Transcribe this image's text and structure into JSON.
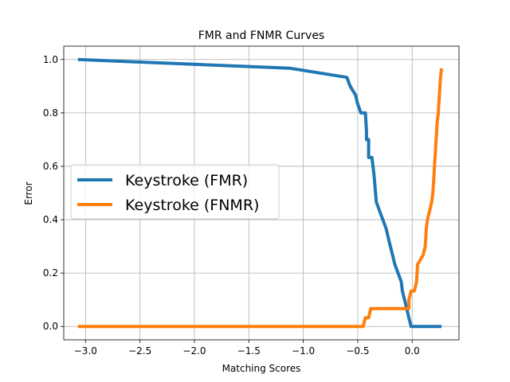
{
  "chart_data": {
    "type": "line",
    "title": "FMR and FNMR Curves",
    "xlabel": "Matching Scores",
    "ylabel": "Error",
    "xlim": [
      -3.2,
      0.43
    ],
    "ylim": [
      -0.05,
      1.05
    ],
    "xticks": [
      -3.0,
      -2.5,
      -2.0,
      -1.5,
      -1.0,
      -0.5,
      0.0
    ],
    "xtick_labels": [
      "−3.0",
      "−2.5",
      "−2.0",
      "−1.5",
      "−1.0",
      "−0.5",
      "0.0"
    ],
    "yticks": [
      0.0,
      0.2,
      0.4,
      0.6,
      0.8,
      1.0
    ],
    "ytick_labels": [
      "0.0",
      "0.2",
      "0.4",
      "0.6",
      "0.8",
      "1.0"
    ],
    "grid": true,
    "legend_position": "center-left",
    "series": [
      {
        "name": "Keystroke (FMR)",
        "color": "#1f77b4",
        "x": [
          -3.07,
          -1.12,
          -0.6,
          -0.57,
          -0.52,
          -0.5,
          -0.47,
          -0.43,
          -0.42,
          -0.42,
          -0.4,
          -0.4,
          -0.37,
          -0.35,
          -0.33,
          -0.3,
          -0.27,
          -0.24,
          -0.22,
          -0.2,
          -0.18,
          -0.16,
          -0.13,
          -0.1,
          -0.09,
          -0.07,
          -0.05,
          -0.03,
          -0.01,
          0.02,
          0.27
        ],
        "y": [
          1.0,
          0.967,
          0.933,
          0.9,
          0.867,
          0.833,
          0.8,
          0.8,
          0.733,
          0.7,
          0.7,
          0.633,
          0.633,
          0.567,
          0.467,
          0.433,
          0.4,
          0.367,
          0.333,
          0.3,
          0.267,
          0.233,
          0.2,
          0.167,
          0.133,
          0.1,
          0.067,
          0.033,
          0.0,
          0.0,
          0.0
        ]
      },
      {
        "name": "Keystroke (FNMR)",
        "color": "#ff7f0e",
        "x": [
          -3.07,
          -0.5,
          -0.45,
          -0.43,
          -0.4,
          -0.38,
          -0.35,
          -0.3,
          -0.03,
          -0.03,
          -0.01,
          0.02,
          0.04,
          0.05,
          0.1,
          0.12,
          0.13,
          0.14,
          0.16,
          0.18,
          0.19,
          0.2,
          0.21,
          0.22,
          0.23,
          0.24,
          0.25,
          0.26,
          0.27
        ],
        "y": [
          0.0,
          0.0,
          0.0,
          0.033,
          0.033,
          0.067,
          0.067,
          0.067,
          0.067,
          0.1,
          0.133,
          0.133,
          0.167,
          0.233,
          0.267,
          0.3,
          0.367,
          0.4,
          0.433,
          0.467,
          0.5,
          0.567,
          0.633,
          0.7,
          0.767,
          0.8,
          0.867,
          0.933,
          0.967
        ]
      }
    ]
  }
}
